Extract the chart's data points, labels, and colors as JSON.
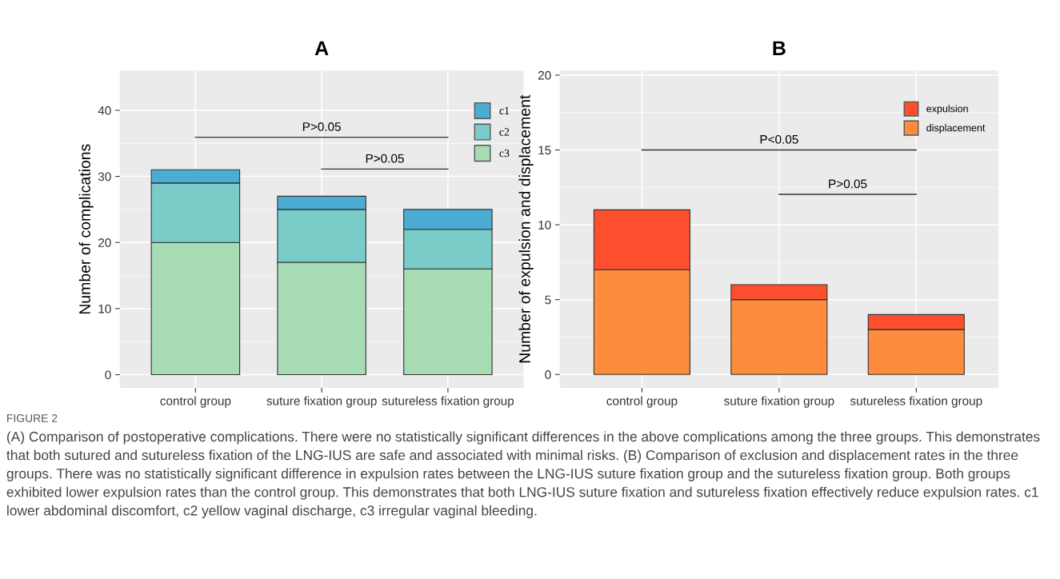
{
  "chart_data": [
    {
      "type": "bar",
      "title": "A",
      "ylabel": "Number of complications",
      "stacked": true,
      "categories": [
        "control group",
        "suture fixation group",
        "sutureless fixation group"
      ],
      "series": [
        {
          "name": "c3",
          "color": "#a8dcb5",
          "values": [
            20,
            17,
            16
          ]
        },
        {
          "name": "c2",
          "color": "#7accc8",
          "values": [
            9,
            8,
            6
          ]
        },
        {
          "name": "c1",
          "color": "#4badd4",
          "values": [
            2,
            2,
            3
          ]
        }
      ],
      "ylim": [
        -2,
        46
      ],
      "yticks": [
        0,
        10,
        20,
        30,
        40
      ],
      "grid": true,
      "legend": "top right",
      "annotations": [
        "P>0.05",
        "P>0.05",
        "FIGURE 2",
        "(A) Comparison of postoperative complications. There were no statistically significant differences in the above complications among the three groups. This demonstrates that both sutured and sutureless fixation of the LNG-IUS are safe and associated with minimal risks. (B) Comparison of exclusion and displacement rates in the three groups. There was no statistically significant difference in expulsion rates between the LNG-IUS suture fixation group and the sutureless fixation group. Both groups exhibited lower expulsion rates than the control group. This demonstrates that both LNG-IUS suture fixation and sutureless fixation effectively reduce expulsion rates. c1 lower abdominal discomfort, c2 yellow vaginal discharge, c3 irregular vaginal bleeding."
      ]
    },
    {
      "type": "bar",
      "title": "B",
      "ylabel": "Number of expulsion and displacement",
      "stacked": true,
      "categories": [
        "control group",
        "suture fixation group",
        "sutureless fixation group"
      ],
      "series": [
        {
          "name": "displacement",
          "color": "#fd8d3c",
          "values": [
            7,
            5,
            3
          ]
        },
        {
          "name": "expulsion",
          "color": "#fd4f2d",
          "values": [
            4,
            1,
            1
          ]
        }
      ],
      "ylim": [
        -0.9,
        20.3
      ],
      "yticks": [
        0,
        5,
        10,
        15,
        20
      ],
      "grid": true,
      "legend": "top right",
      "annotations": [
        "P<0.05",
        "P>0.05"
      ]
    }
  ]
}
